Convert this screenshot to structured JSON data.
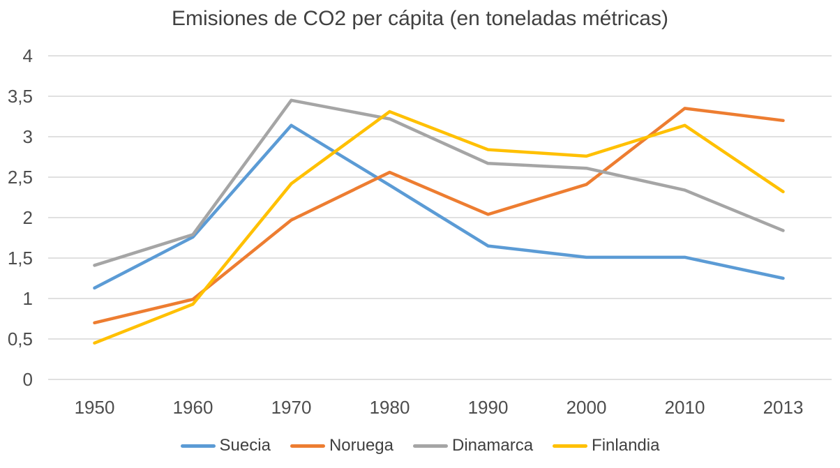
{
  "title": "Emisiones de CO2 per cápita (en toneladas métricas)",
  "chart_data": {
    "type": "line",
    "title": "Emisiones de CO2 per cápita (en toneladas métricas)",
    "x": [
      "1950",
      "1960",
      "1970",
      "1980",
      "1990",
      "2000",
      "2010",
      "2013"
    ],
    "series": [
      {
        "name": "Suecia",
        "color": "#5B9BD5",
        "values": [
          1.13,
          1.76,
          3.14,
          2.4,
          1.65,
          1.51,
          1.51,
          1.25
        ]
      },
      {
        "name": "Noruega",
        "color": "#ED7D31",
        "values": [
          0.7,
          0.99,
          1.97,
          2.56,
          2.04,
          2.41,
          3.35,
          3.2
        ]
      },
      {
        "name": "Dinamarca",
        "color": "#A5A5A5",
        "values": [
          1.41,
          1.79,
          3.45,
          3.22,
          2.67,
          2.61,
          2.34,
          1.84
        ]
      },
      {
        "name": "Finlandia",
        "color": "#FFC000",
        "values": [
          0.45,
          0.93,
          2.42,
          3.31,
          2.84,
          2.76,
          3.14,
          2.32
        ]
      }
    ],
    "xlabel": "",
    "ylabel": "",
    "ylim": [
      0,
      4
    ],
    "y_ticks": [
      0,
      0.5,
      1,
      1.5,
      2,
      2.5,
      3,
      3.5,
      4
    ],
    "y_tick_labels": [
      "0",
      "0,5",
      "1",
      "1,5",
      "2",
      "2,5",
      "3",
      "3,5",
      "4"
    ],
    "grid": "horizontal-only",
    "legend_position": "bottom"
  },
  "colors": {
    "background": "#FFFFFF",
    "gridline": "#D6D6D6",
    "title_text": "#404040",
    "axis_text": "#4D4D4D",
    "legend_text": "#404040"
  }
}
